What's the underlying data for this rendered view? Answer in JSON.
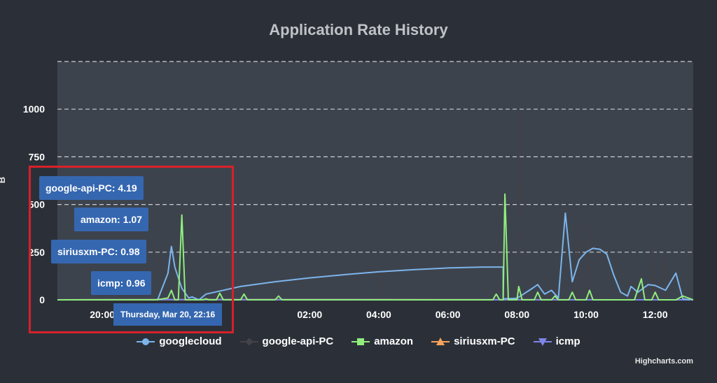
{
  "chart_data": {
    "type": "line",
    "title": "Application Rate History",
    "ylabel": "B",
    "ylim": [
      0,
      1250
    ],
    "y_ticks": [
      "0",
      "250",
      "500",
      "750",
      "1000"
    ],
    "x_ticks": [
      "20:00",
      "Mar",
      "02:00",
      "04:00",
      "06:00",
      "08:00",
      "10:00",
      "12:00"
    ],
    "x_tick_hours": [
      20,
      22,
      26,
      28,
      30,
      32,
      34,
      36
    ],
    "xlim_hours": [
      18.7,
      37.1
    ],
    "grid": true,
    "grid_style": "dashed",
    "legend_position": "bottom",
    "series": [
      {
        "name": "googlecloud",
        "color": "#7cb5ec",
        "marker": "circle",
        "points": [
          [
            18.7,
            0
          ],
          [
            20.5,
            0
          ],
          [
            21.6,
            0
          ],
          [
            21.9,
            140
          ],
          [
            22.0,
            280
          ],
          [
            22.1,
            170
          ],
          [
            22.3,
            60
          ],
          [
            22.5,
            10
          ],
          [
            22.6,
            15
          ],
          [
            22.8,
            0
          ],
          [
            23.0,
            30
          ],
          [
            24.0,
            70
          ],
          [
            25.0,
            95
          ],
          [
            26.0,
            115
          ],
          [
            27.0,
            132
          ],
          [
            28.0,
            147
          ],
          [
            29.0,
            158
          ],
          [
            30.0,
            167
          ],
          [
            31.0,
            172
          ],
          [
            31.6,
            172
          ],
          [
            31.6,
            5
          ],
          [
            32.0,
            8
          ],
          [
            32.4,
            55
          ],
          [
            32.6,
            80
          ],
          [
            32.8,
            30
          ],
          [
            33.0,
            50
          ],
          [
            33.2,
            10
          ],
          [
            33.4,
            455
          ],
          [
            33.6,
            95
          ],
          [
            33.8,
            210
          ],
          [
            34.0,
            250
          ],
          [
            34.2,
            270
          ],
          [
            34.4,
            265
          ],
          [
            34.6,
            240
          ],
          [
            34.8,
            130
          ],
          [
            35.0,
            40
          ],
          [
            35.2,
            20
          ],
          [
            35.3,
            70
          ],
          [
            35.5,
            40
          ],
          [
            35.8,
            80
          ],
          [
            36.0,
            75
          ],
          [
            36.3,
            50
          ],
          [
            36.6,
            140
          ],
          [
            36.8,
            5
          ],
          [
            37.0,
            0
          ]
        ]
      },
      {
        "name": "google-api-PC",
        "color": "#434348",
        "marker": "diamond",
        "points": [
          [
            18.7,
            0
          ],
          [
            21.6,
            0
          ],
          [
            21.8,
            4.19
          ],
          [
            28.0,
            0
          ],
          [
            28.05,
            130
          ],
          [
            28.1,
            0
          ],
          [
            31.6,
            0
          ],
          [
            31.7,
            90
          ],
          [
            31.8,
            0
          ],
          [
            32.0,
            0
          ],
          [
            32.05,
            1000
          ],
          [
            32.1,
            0
          ],
          [
            33.7,
            0
          ],
          [
            33.75,
            420
          ],
          [
            33.8,
            0
          ],
          [
            34.0,
            0
          ],
          [
            34.05,
            400
          ],
          [
            34.1,
            0
          ],
          [
            35.9,
            0
          ],
          [
            35.95,
            280
          ],
          [
            36.0,
            0
          ],
          [
            36.2,
            0
          ],
          [
            36.25,
            260
          ],
          [
            36.3,
            0
          ],
          [
            37.1,
            0
          ]
        ]
      },
      {
        "name": "amazon",
        "color": "#90ed7d",
        "marker": "square",
        "points": [
          [
            18.7,
            0
          ],
          [
            21.5,
            0
          ],
          [
            21.6,
            1.07
          ],
          [
            21.9,
            10
          ],
          [
            22.0,
            50
          ],
          [
            22.1,
            0
          ],
          [
            22.2,
            0
          ],
          [
            22.3,
            445
          ],
          [
            22.4,
            0
          ],
          [
            22.9,
            0
          ],
          [
            23.0,
            5
          ],
          [
            23.1,
            0
          ],
          [
            23.3,
            0
          ],
          [
            23.4,
            35
          ],
          [
            23.5,
            0
          ],
          [
            24.0,
            0
          ],
          [
            24.1,
            30
          ],
          [
            24.2,
            0
          ],
          [
            25.0,
            0
          ],
          [
            25.1,
            20
          ],
          [
            25.2,
            0
          ],
          [
            31.3,
            0
          ],
          [
            31.4,
            30
          ],
          [
            31.5,
            0
          ],
          [
            31.6,
            0
          ],
          [
            31.65,
            555
          ],
          [
            31.75,
            0
          ],
          [
            32.0,
            0
          ],
          [
            32.05,
            70
          ],
          [
            32.15,
            0
          ],
          [
            32.5,
            0
          ],
          [
            32.6,
            40
          ],
          [
            32.7,
            0
          ],
          [
            33.0,
            0
          ],
          [
            33.1,
            20
          ],
          [
            33.2,
            0
          ],
          [
            33.5,
            0
          ],
          [
            33.6,
            40
          ],
          [
            33.7,
            0
          ],
          [
            34.0,
            0
          ],
          [
            34.1,
            50
          ],
          [
            34.2,
            0
          ],
          [
            35.4,
            0
          ],
          [
            35.6,
            110
          ],
          [
            35.7,
            0
          ],
          [
            35.9,
            0
          ],
          [
            36.0,
            40
          ],
          [
            36.1,
            0
          ],
          [
            36.6,
            0
          ],
          [
            36.8,
            20
          ],
          [
            37.1,
            0
          ]
        ]
      },
      {
        "name": "siriusxm-PC",
        "color": "#f7a35c",
        "marker": "triangle",
        "points": [
          [
            18.7,
            0
          ],
          [
            21.6,
            0.98
          ],
          [
            37.1,
            0
          ]
        ]
      },
      {
        "name": "icmp",
        "color": "#8085e9",
        "marker": "triangle-down",
        "points": [
          [
            18.7,
            0
          ],
          [
            21.6,
            0.96
          ],
          [
            37.1,
            0
          ]
        ]
      }
    ],
    "tooltip": {
      "header": "Thursday, Mar 20, 22:16",
      "items": [
        {
          "series": "google-api-PC",
          "value": "4.19"
        },
        {
          "series": "amazon",
          "value": "1.07"
        },
        {
          "series": "siriusxm-PC",
          "value": "0.98"
        },
        {
          "series": "icmp",
          "value": "0.96"
        }
      ]
    }
  },
  "credits": "Highcharts.com",
  "legend_labels": [
    "googlecloud",
    "google-api-PC",
    "amazon",
    "siriusxm-PC",
    "icmp"
  ],
  "tooltip_labels": {
    "t0": "google-api-PC: 4.19",
    "t1": "amazon: 1.07",
    "t2": "siriusxm-PC: 0.98",
    "t3": "icmp: 0.96",
    "header": "Thursday, Mar 20, 22:16"
  },
  "colors": {
    "background": "#2b3038",
    "plot_background": "#3d434d",
    "grid": "#e6e6e6",
    "tooltip": "#3567b0",
    "highlight": "#d8202a"
  }
}
